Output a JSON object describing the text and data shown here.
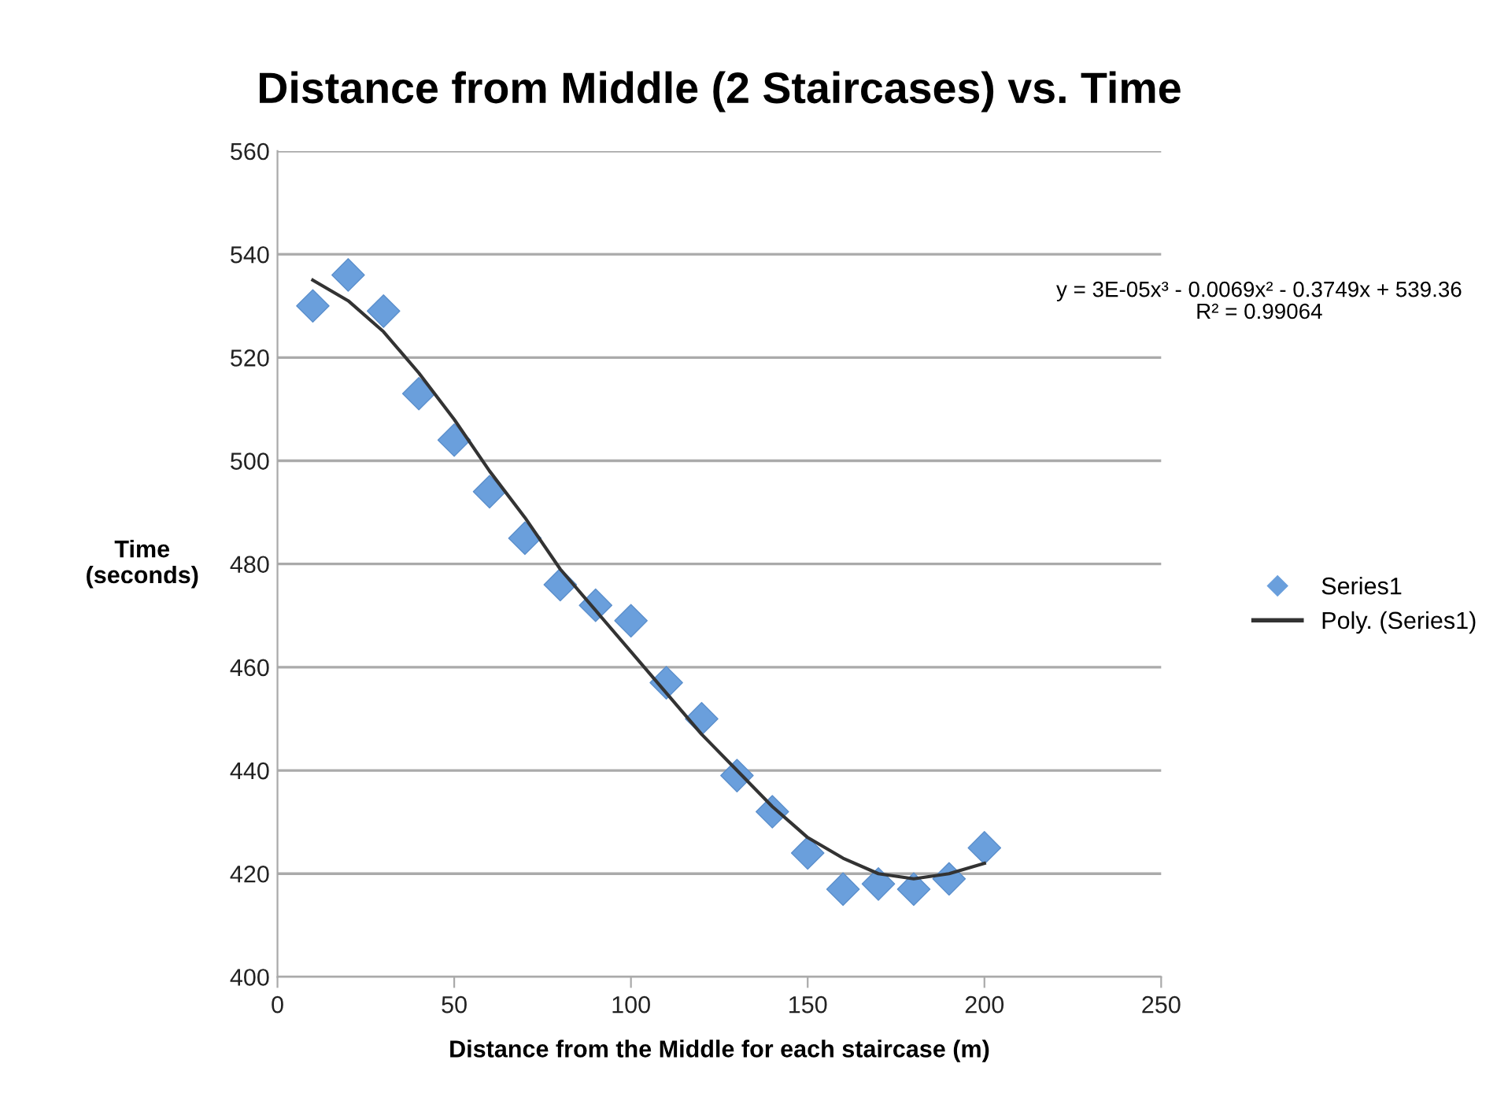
{
  "chart_data": {
    "type": "scatter",
    "title": "Distance from Middle (2 Staircases) vs. Time",
    "xlabel": "Distance from the Middle for each staircase (m)",
    "ylabel": "Time\n(seconds)",
    "series": [
      {
        "name": "Series1",
        "color": "#6a9fdc",
        "marker": "diamond",
        "x": [
          10,
          20,
          30,
          40,
          50,
          60,
          70,
          80,
          90,
          100,
          110,
          120,
          130,
          140,
          150,
          160,
          170,
          180,
          190,
          200
        ],
        "values": [
          530,
          536,
          529,
          513,
          504,
          494,
          485,
          476,
          472,
          469,
          457,
          450,
          439,
          432,
          424,
          417,
          418,
          417,
          419,
          425
        ]
      },
      {
        "name": "Poly. (Series1)",
        "type": "line",
        "color": "#333333",
        "marker": "none",
        "line_style": "solid",
        "x": [
          10,
          20,
          30,
          40,
          50,
          60,
          70,
          80,
          90,
          100,
          110,
          120,
          130,
          140,
          150,
          160,
          170,
          180,
          190,
          200
        ],
        "values": [
          535,
          531,
          525,
          517,
          508,
          498,
          489,
          479,
          471,
          463,
          455,
          447,
          440,
          433,
          427,
          423,
          420,
          419,
          420,
          422
        ]
      }
    ],
    "annotations": [
      "y = 3E-05x³ - 0.0069x² - 0.3749x + 539.36\nR² = 0.99064"
    ],
    "xlim": [
      0,
      250
    ],
    "xticks": [
      0,
      50,
      100,
      150,
      200,
      250
    ],
    "ylim": [
      400,
      560
    ],
    "yticks": [
      400,
      420,
      440,
      460,
      480,
      500,
      520,
      540,
      560
    ],
    "grid": "y",
    "legend": "right"
  }
}
